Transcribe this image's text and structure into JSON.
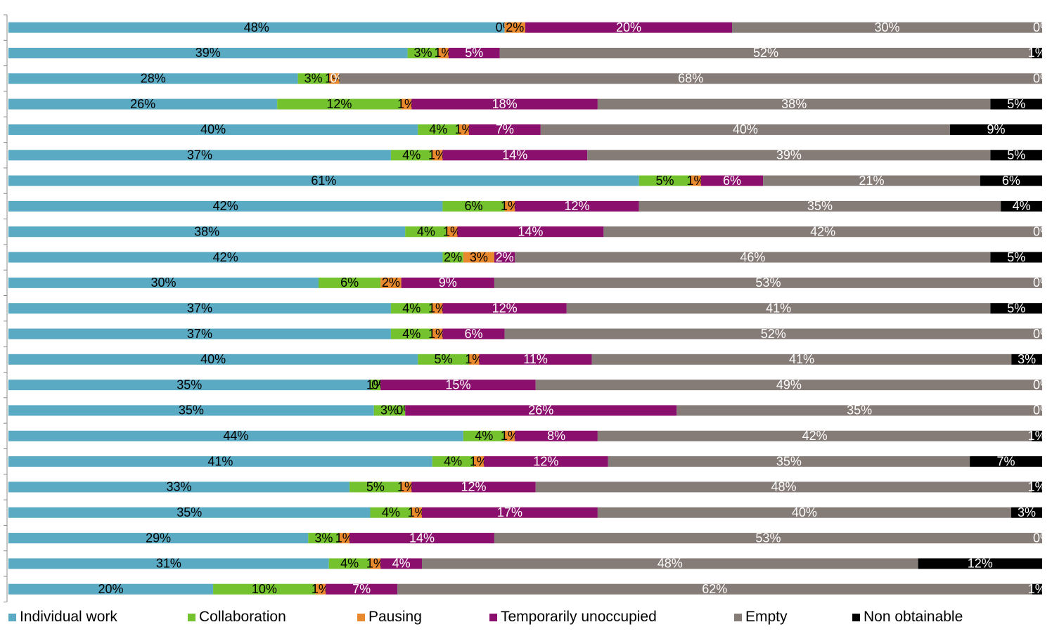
{
  "chart_data": {
    "type": "bar",
    "orientation": "horizontal",
    "stacked": "100%",
    "legend_position": "bottom",
    "value_suffix": "%",
    "series": [
      {
        "name": "Individual work",
        "color": "#5aaac4",
        "label_color": "#000000",
        "values": [
          48,
          39,
          28,
          26,
          40,
          37,
          61,
          42,
          38,
          42,
          30,
          37,
          37,
          40,
          35,
          35,
          44,
          41,
          33,
          35,
          29,
          31,
          20
        ]
      },
      {
        "name": "Collaboration",
        "color": "#73c22e",
        "label_color": "#000000",
        "values": [
          0,
          3,
          3,
          12,
          4,
          4,
          5,
          6,
          4,
          2,
          6,
          4,
          4,
          5,
          1,
          3,
          4,
          4,
          5,
          4,
          3,
          4,
          10
        ]
      },
      {
        "name": "Pausing",
        "color": "#e8892e",
        "label_color": "#000000",
        "values": [
          2,
          1,
          1,
          1,
          1,
          1,
          1,
          1,
          1,
          3,
          2,
          1,
          1,
          1,
          0,
          0,
          1,
          1,
          1,
          1,
          1,
          1,
          1
        ]
      },
      {
        "name": "Temporarily unoccupied",
        "color": "#8b0f6d",
        "label_color": "#ffffff",
        "values": [
          20,
          5,
          0,
          18,
          7,
          14,
          6,
          12,
          14,
          2,
          9,
          12,
          6,
          11,
          15,
          26,
          8,
          12,
          12,
          17,
          14,
          4,
          7
        ]
      },
      {
        "name": "Empty",
        "color": "#857b77",
        "label_color": "#ffffff",
        "values": [
          30,
          52,
          68,
          38,
          40,
          39,
          21,
          35,
          42,
          46,
          53,
          41,
          52,
          41,
          49,
          35,
          42,
          35,
          48,
          40,
          53,
          48,
          62
        ]
      },
      {
        "name": "Non obtainable",
        "color": "#000000",
        "label_color": "#ffffff",
        "values": [
          0,
          1,
          0,
          5,
          9,
          5,
          6,
          4,
          0,
          5,
          0,
          5,
          0,
          3,
          0,
          0,
          1,
          7,
          1,
          3,
          0,
          12,
          1
        ]
      }
    ]
  }
}
